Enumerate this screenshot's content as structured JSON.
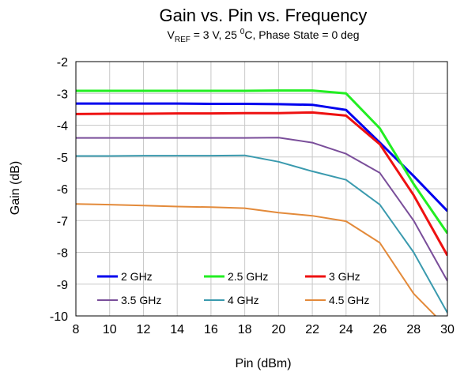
{
  "chart_data": {
    "type": "line",
    "title": "Gain vs. Pin vs. Frequency",
    "subtitle": {
      "prefix": "V",
      "prefix_sub": "REF",
      "middle": " = 3 V, 25 ",
      "deg_sup": "0",
      "suffix": "C, Phase State = 0 deg"
    },
    "xlabel": "Pin (dBm)",
    "ylabel": "Gain (dB)",
    "xlim": [
      8,
      30
    ],
    "ylim": [
      -10,
      -2
    ],
    "xticks": [
      8,
      10,
      12,
      14,
      16,
      18,
      20,
      22,
      24,
      26,
      28,
      30
    ],
    "yticks": [
      -2,
      -3,
      -4,
      -5,
      -6,
      -7,
      -8,
      -9,
      -10
    ],
    "grid": true,
    "legend_position": "bottom-inside",
    "series": [
      {
        "name": "2 GHz",
        "color": "#0000ee",
        "width": 3,
        "x": [
          8,
          10,
          12,
          14,
          16,
          18,
          20,
          22,
          24,
          26,
          28,
          30
        ],
        "y": [
          -3.32,
          -3.32,
          -3.32,
          -3.32,
          -3.33,
          -3.33,
          -3.34,
          -3.36,
          -3.52,
          -4.55,
          -5.6,
          -6.7
        ]
      },
      {
        "name": "2.5 GHz",
        "color": "#22ee22",
        "width": 3,
        "x": [
          8,
          10,
          12,
          14,
          16,
          18,
          20,
          22,
          24,
          26,
          28,
          30
        ],
        "y": [
          -2.92,
          -2.92,
          -2.92,
          -2.92,
          -2.92,
          -2.92,
          -2.91,
          -2.91,
          -3.0,
          -4.1,
          -5.85,
          -7.4
        ]
      },
      {
        "name": "3 GHz",
        "color": "#ee1111",
        "width": 3,
        "x": [
          8,
          10,
          12,
          14,
          16,
          18,
          20,
          22,
          24,
          26,
          28,
          30
        ],
        "y": [
          -3.65,
          -3.64,
          -3.64,
          -3.63,
          -3.63,
          -3.62,
          -3.62,
          -3.6,
          -3.7,
          -4.6,
          -6.2,
          -8.1
        ]
      },
      {
        "name": "3.5 GHz",
        "color": "#7a4e9a",
        "width": 2,
        "x": [
          8,
          10,
          12,
          14,
          16,
          18,
          20,
          22,
          24,
          26,
          28,
          30
        ],
        "y": [
          -4.4,
          -4.4,
          -4.4,
          -4.4,
          -4.4,
          -4.4,
          -4.39,
          -4.55,
          -4.9,
          -5.5,
          -7.0,
          -8.9
        ]
      },
      {
        "name": "4 GHz",
        "color": "#3a9aae",
        "width": 2,
        "x": [
          8,
          10,
          12,
          14,
          16,
          18,
          20,
          22,
          24,
          26,
          28,
          30
        ],
        "y": [
          -4.97,
          -4.97,
          -4.96,
          -4.96,
          -4.96,
          -4.95,
          -5.15,
          -5.45,
          -5.72,
          -6.5,
          -8.0,
          -9.9
        ]
      },
      {
        "name": "4.5 GHz",
        "color": "#e38a3a",
        "width": 2,
        "x": [
          8,
          10,
          12,
          14,
          16,
          18,
          20,
          22,
          24,
          26,
          28,
          29.3
        ],
        "y": [
          -6.48,
          -6.5,
          -6.53,
          -6.56,
          -6.58,
          -6.61,
          -6.75,
          -6.85,
          -7.02,
          -7.7,
          -9.3,
          -10.0
        ]
      }
    ]
  }
}
